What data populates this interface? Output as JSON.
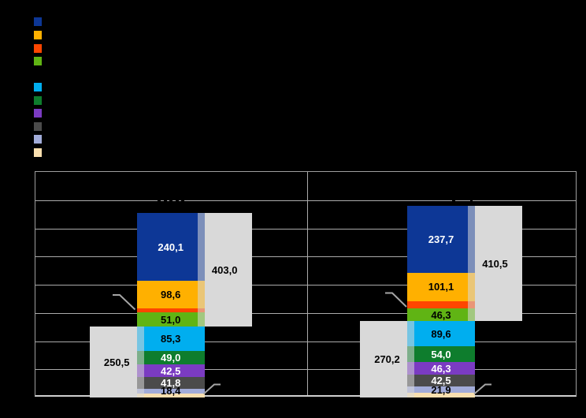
{
  "background_color": "#000000",
  "legend": {
    "groups": [
      {
        "items": [
          {
            "name": "dark-blue",
            "color": "#0D3796",
            "label": ""
          },
          {
            "name": "amber",
            "color": "#FFB000",
            "label": ""
          },
          {
            "name": "orange-red",
            "color": "#FD4600",
            "label": ""
          },
          {
            "name": "yellow-green",
            "color": "#60B414",
            "label": ""
          }
        ]
      },
      {
        "items": [
          {
            "name": "cyan",
            "color": "#00AEEF",
            "label": ""
          },
          {
            "name": "dark-green",
            "color": "#0E7D2D",
            "label": ""
          },
          {
            "name": "purple",
            "color": "#7B3BC2",
            "label": ""
          },
          {
            "name": "dark-gray",
            "color": "#4B4B4B",
            "label": ""
          },
          {
            "name": "periwinkle",
            "color": "#A2ACD9",
            "label": ""
          },
          {
            "name": "tan",
            "color": "#F9DFAF",
            "label": ""
          }
        ]
      }
    ]
  },
  "chart_data": {
    "type": "bar",
    "stacked": true,
    "panels": [
      "",
      ""
    ],
    "value_axis": {
      "min": 0,
      "max": 800,
      "gridline_step": 100,
      "tick_labels_visible": false,
      "grid": true
    },
    "series": [
      {
        "name": "dark-blue",
        "color": "#0D3796",
        "label_color": "#FFFFFF",
        "values": [
          240.1,
          237.7
        ],
        "labels": [
          "240,1",
          "237,7"
        ]
      },
      {
        "name": "amber",
        "color": "#FFB000",
        "label_color": "#000000",
        "values": [
          98.6,
          101.1
        ],
        "labels": [
          "98,6",
          "101,1"
        ]
      },
      {
        "name": "orange-red",
        "color": "#FD4600",
        "label_color": "#000000",
        "values": [
          13.3,
          25.4
        ],
        "labels": [
          "",
          ""
        ]
      },
      {
        "name": "yellow-green",
        "color": "#60B414",
        "label_color": "#000000",
        "values": [
          51.0,
          46.3
        ],
        "labels": [
          "51,0",
          "46,3"
        ]
      },
      {
        "name": "cyan",
        "color": "#00AEEF",
        "label_color": "#000000",
        "values": [
          85.3,
          89.6
        ],
        "labels": [
          "85,3",
          "89,6"
        ]
      },
      {
        "name": "dark-green",
        "color": "#0E7D2D",
        "label_color": "#FFFFFF",
        "values": [
          49.0,
          54.0
        ],
        "labels": [
          "49,0",
          "54,0"
        ]
      },
      {
        "name": "purple",
        "color": "#7B3BC2",
        "label_color": "#FFFFFF",
        "values": [
          42.5,
          46.3
        ],
        "labels": [
          "42,5",
          "46,3"
        ]
      },
      {
        "name": "dark-gray",
        "color": "#4B4B4B",
        "label_color": "#FFFFFF",
        "values": [
          41.8,
          42.5
        ],
        "labels": [
          "41,8",
          "42,5"
        ]
      },
      {
        "name": "periwinkle",
        "color": "#A2ACD9",
        "label_color": "#000000",
        "values": [
          18.4,
          21.9
        ],
        "labels": [
          "18,4",
          "21,9"
        ]
      },
      {
        "name": "tan",
        "color": "#F9DFAF",
        "label_color": "#000000",
        "values": [
          13.5,
          15.9
        ],
        "labels": [
          "",
          ""
        ]
      }
    ],
    "total_brackets": {
      "upper": {
        "color": "#D9D9D9",
        "label_color": "#000000",
        "side": "right",
        "values": [
          403.0,
          410.5
        ],
        "labels": [
          "403,0",
          "410,5"
        ],
        "covers_series": [
          0,
          3
        ]
      },
      "lower": {
        "color": "#D9D9D9",
        "label_color": "#000000",
        "side": "left",
        "values": [
          250.5,
          270.2
        ],
        "labels": [
          "250,5",
          "270,2"
        ],
        "covers_series": [
          4,
          9
        ]
      }
    }
  }
}
